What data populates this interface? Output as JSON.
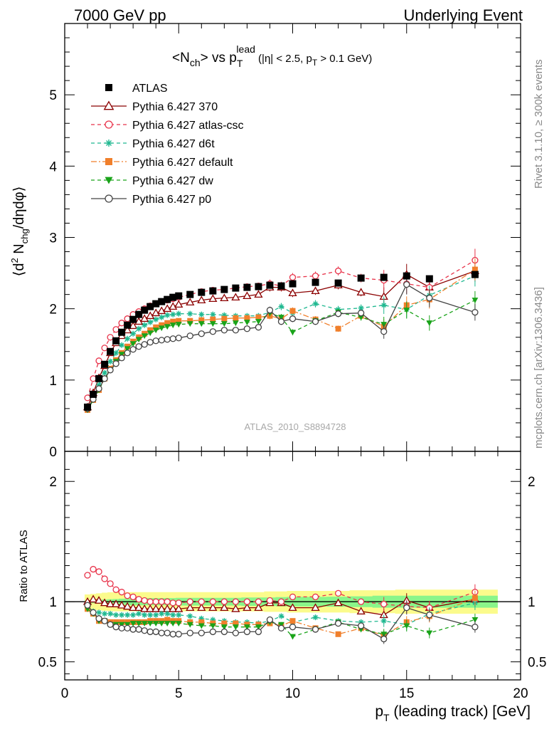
{
  "header": {
    "left": "7000 GeV pp",
    "right": "Underlying Event"
  },
  "side_labels": {
    "rivet": "Rivet 3.1.10, ≥ 300k events",
    "mcplots": "mcplots.cern.ch [arXiv:1306.3436]"
  },
  "colors": {
    "data": "#000000",
    "p370": "#8b0000",
    "atlas_csc": "#e8334a",
    "d6t": "#1fb890",
    "default": "#f07f2b",
    "dw": "#19a319",
    "p0": "#444444",
    "band_inner": "#8af58a",
    "band_outer": "#fbfb8c"
  },
  "chart_data": [
    {
      "type": "scatter",
      "panel": "main",
      "title_parts": [
        "<N",
        "ch",
        "> vs p",
        "T",
        "lead",
        " (|η| < 2.5, p",
        "T",
        " > 0.1 GeV)"
      ],
      "ylabel_parts": [
        "⟨d",
        "2",
        " N",
        "chg",
        "/dηdφ⟩"
      ],
      "watermark": "ATLAS_2010_S8894728",
      "xlim": [
        0,
        20
      ],
      "ylim": [
        0,
        6
      ],
      "yticks": [
        "0",
        "1",
        "2",
        "3",
        "4",
        "5"
      ],
      "legend_position": "top-left",
      "x": [
        1.0,
        1.25,
        1.5,
        1.75,
        2.0,
        2.25,
        2.5,
        2.75,
        3.0,
        3.25,
        3.5,
        3.75,
        4.0,
        4.25,
        4.5,
        4.75,
        5.0,
        5.5,
        6.0,
        6.5,
        7.0,
        7.5,
        8.0,
        8.5,
        9.0,
        9.5,
        10.0,
        11.0,
        12.0,
        13.0,
        14.0,
        15.0,
        16.0,
        18.0
      ],
      "data": {
        "name": "ATLAS",
        "y": [
          0.62,
          0.8,
          1.02,
          1.22,
          1.4,
          1.55,
          1.67,
          1.77,
          1.85,
          1.92,
          1.98,
          2.03,
          2.07,
          2.1,
          2.13,
          2.16,
          2.18,
          2.2,
          2.23,
          2.25,
          2.27,
          2.29,
          2.3,
          2.31,
          2.33,
          2.32,
          2.35,
          2.37,
          2.36,
          2.43,
          2.44,
          2.46,
          2.42,
          2.48
        ]
      },
      "series": [
        {
          "name": "Pythia 6.427 370",
          "key": "p370",
          "marker": "triangle-open",
          "dash": "solid",
          "y": [
            0.62,
            0.82,
            1.03,
            1.2,
            1.38,
            1.52,
            1.62,
            1.7,
            1.76,
            1.82,
            1.86,
            1.9,
            1.94,
            1.97,
            2.0,
            2.03,
            2.06,
            2.09,
            2.12,
            2.14,
            2.15,
            2.16,
            2.18,
            2.2,
            2.3,
            2.3,
            2.22,
            2.25,
            2.33,
            2.23,
            2.17,
            2.48,
            2.3,
            2.53
          ]
        },
        {
          "name": "Pythia 6.427 atlas-csc",
          "key": "atlas_csc",
          "marker": "circle-open",
          "dash": "dashed",
          "y": [
            0.75,
            1.02,
            1.27,
            1.45,
            1.6,
            1.71,
            1.8,
            1.86,
            1.92,
            1.96,
            2.0,
            2.04,
            2.07,
            2.1,
            2.12,
            2.14,
            2.16,
            2.2,
            2.24,
            2.26,
            2.27,
            2.29,
            2.31,
            2.32,
            2.35,
            2.32,
            2.44,
            2.46,
            2.53,
            2.43,
            2.4,
            2.35,
            2.3,
            2.68
          ]
        },
        {
          "name": "Pythia 6.427 d6t",
          "key": "d6t",
          "marker": "star",
          "dash": "dashed",
          "y": [
            0.6,
            0.74,
            0.93,
            1.1,
            1.26,
            1.38,
            1.49,
            1.58,
            1.65,
            1.72,
            1.77,
            1.81,
            1.85,
            1.88,
            1.91,
            1.92,
            1.93,
            1.93,
            1.92,
            1.92,
            1.91,
            1.9,
            1.9,
            1.9,
            1.95,
            2.03,
            1.94,
            2.07,
            1.99,
            2.01,
            2.05,
            1.99,
            2.19,
            2.46
          ]
        },
        {
          "name": "Pythia 6.427 default",
          "key": "default",
          "marker": "square-filled",
          "dash": "dashdot",
          "y": [
            0.58,
            0.72,
            0.86,
            1.02,
            1.16,
            1.28,
            1.38,
            1.47,
            1.54,
            1.6,
            1.65,
            1.7,
            1.74,
            1.77,
            1.8,
            1.82,
            1.83,
            1.83,
            1.84,
            1.85,
            1.86,
            1.87,
            1.87,
            1.88,
            1.9,
            1.86,
            1.97,
            1.85,
            1.72,
            1.9,
            1.75,
            2.05,
            2.13,
            2.55
          ]
        },
        {
          "name": "Pythia 6.427 dw",
          "key": "dw",
          "marker": "triangle-down-filled",
          "dash": "dashed",
          "y": [
            0.58,
            0.72,
            0.86,
            1.02,
            1.14,
            1.26,
            1.36,
            1.44,
            1.51,
            1.57,
            1.62,
            1.66,
            1.7,
            1.73,
            1.75,
            1.77,
            1.78,
            1.79,
            1.79,
            1.79,
            1.79,
            1.8,
            1.81,
            1.82,
            1.94,
            1.88,
            1.67,
            1.83,
            1.95,
            1.88,
            1.78,
            1.98,
            1.8,
            2.12
          ]
        },
        {
          "name": "Pythia 6.427 p0",
          "key": "p0",
          "marker": "circle-open",
          "dash": "solid",
          "y": [
            0.6,
            0.73,
            0.88,
            1.02,
            1.14,
            1.23,
            1.31,
            1.38,
            1.43,
            1.47,
            1.5,
            1.53,
            1.55,
            1.56,
            1.57,
            1.58,
            1.59,
            1.62,
            1.65,
            1.68,
            1.7,
            1.7,
            1.72,
            1.74,
            1.98,
            1.82,
            1.86,
            1.82,
            1.93,
            1.94,
            1.68,
            2.34,
            2.15,
            1.95
          ]
        }
      ]
    },
    {
      "type": "scatter",
      "panel": "ratio",
      "ylabel": "Ratio to ATLAS",
      "xlabel_parts": [
        "p",
        "T",
        " (leading track) [GeV]"
      ],
      "xlim": [
        0,
        20
      ],
      "ylim": [
        0.35,
        2.25
      ],
      "xticks": [
        "0",
        "5",
        "10",
        "15",
        "20"
      ],
      "yticks": [
        "0.5",
        "1",
        "2"
      ],
      "reference_line": 1,
      "band": {
        "inner_half_width": [
          0.012,
          0.012,
          0.015,
          0.018,
          0.02,
          0.022,
          0.025,
          0.028,
          0.03,
          0.03,
          0.03,
          0.03,
          0.03,
          0.03,
          0.03,
          0.03,
          0.032,
          0.032,
          0.032,
          0.032,
          0.032,
          0.032,
          0.035,
          0.035,
          0.035,
          0.038,
          0.04,
          0.04,
          0.042,
          0.045,
          0.05,
          0.05,
          0.05,
          0.05
        ],
        "outer_half_width": [
          0.06,
          0.065,
          0.07,
          0.075,
          0.078,
          0.08,
          0.08,
          0.08,
          0.08,
          0.08,
          0.08,
          0.08,
          0.08,
          0.08,
          0.08,
          0.08,
          0.08,
          0.08,
          0.08,
          0.08,
          0.08,
          0.08,
          0.08,
          0.08,
          0.085,
          0.085,
          0.09,
          0.09,
          0.09,
          0.095,
          0.095,
          0.1,
          0.1,
          0.1
        ]
      },
      "series": [
        {
          "key": "p370",
          "y": [
            1.0,
            1.02,
            1.01,
            0.99,
            0.98,
            0.98,
            0.97,
            0.96,
            0.95,
            0.95,
            0.94,
            0.94,
            0.94,
            0.94,
            0.94,
            0.94,
            0.94,
            0.95,
            0.95,
            0.95,
            0.95,
            0.94,
            0.95,
            0.95,
            0.99,
            0.99,
            0.95,
            0.95,
            0.99,
            0.92,
            0.89,
            1.01,
            0.95,
            1.02
          ]
        },
        {
          "key": "atlas_csc",
          "y": [
            1.22,
            1.27,
            1.25,
            1.19,
            1.15,
            1.1,
            1.08,
            1.05,
            1.04,
            1.02,
            1.01,
            1.0,
            1.0,
            1.0,
            1.0,
            0.99,
            0.99,
            1.0,
            1.0,
            1.0,
            1.0,
            1.0,
            1.0,
            1.0,
            1.01,
            1.0,
            1.04,
            1.04,
            1.07,
            1.0,
            0.98,
            0.96,
            0.95,
            1.08
          ]
        },
        {
          "key": "d6t",
          "y": [
            0.97,
            0.92,
            0.91,
            0.9,
            0.9,
            0.89,
            0.89,
            0.89,
            0.89,
            0.9,
            0.89,
            0.89,
            0.89,
            0.9,
            0.9,
            0.89,
            0.89,
            0.88,
            0.86,
            0.85,
            0.84,
            0.83,
            0.83,
            0.82,
            0.84,
            0.88,
            0.83,
            0.87,
            0.84,
            0.83,
            0.84,
            0.81,
            0.9,
            0.99
          ]
        },
        {
          "key": "default",
          "y": [
            0.94,
            0.9,
            0.84,
            0.84,
            0.83,
            0.83,
            0.83,
            0.83,
            0.83,
            0.83,
            0.83,
            0.84,
            0.84,
            0.84,
            0.85,
            0.84,
            0.84,
            0.83,
            0.83,
            0.82,
            0.82,
            0.82,
            0.81,
            0.81,
            0.82,
            0.8,
            0.84,
            0.78,
            0.73,
            0.78,
            0.72,
            0.83,
            0.88,
            1.03
          ]
        },
        {
          "key": "dw",
          "y": [
            0.94,
            0.9,
            0.84,
            0.84,
            0.81,
            0.81,
            0.81,
            0.81,
            0.82,
            0.82,
            0.82,
            0.82,
            0.82,
            0.82,
            0.82,
            0.82,
            0.82,
            0.81,
            0.8,
            0.8,
            0.79,
            0.79,
            0.79,
            0.79,
            0.83,
            0.81,
            0.71,
            0.77,
            0.83,
            0.77,
            0.73,
            0.8,
            0.74,
            0.85
          ]
        },
        {
          "key": "p0",
          "y": [
            0.97,
            0.91,
            0.86,
            0.84,
            0.81,
            0.79,
            0.78,
            0.78,
            0.77,
            0.77,
            0.76,
            0.75,
            0.75,
            0.74,
            0.74,
            0.73,
            0.73,
            0.74,
            0.74,
            0.75,
            0.75,
            0.74,
            0.75,
            0.75,
            0.85,
            0.78,
            0.79,
            0.77,
            0.82,
            0.8,
            0.69,
            0.95,
            0.89,
            0.79
          ]
        }
      ]
    }
  ]
}
